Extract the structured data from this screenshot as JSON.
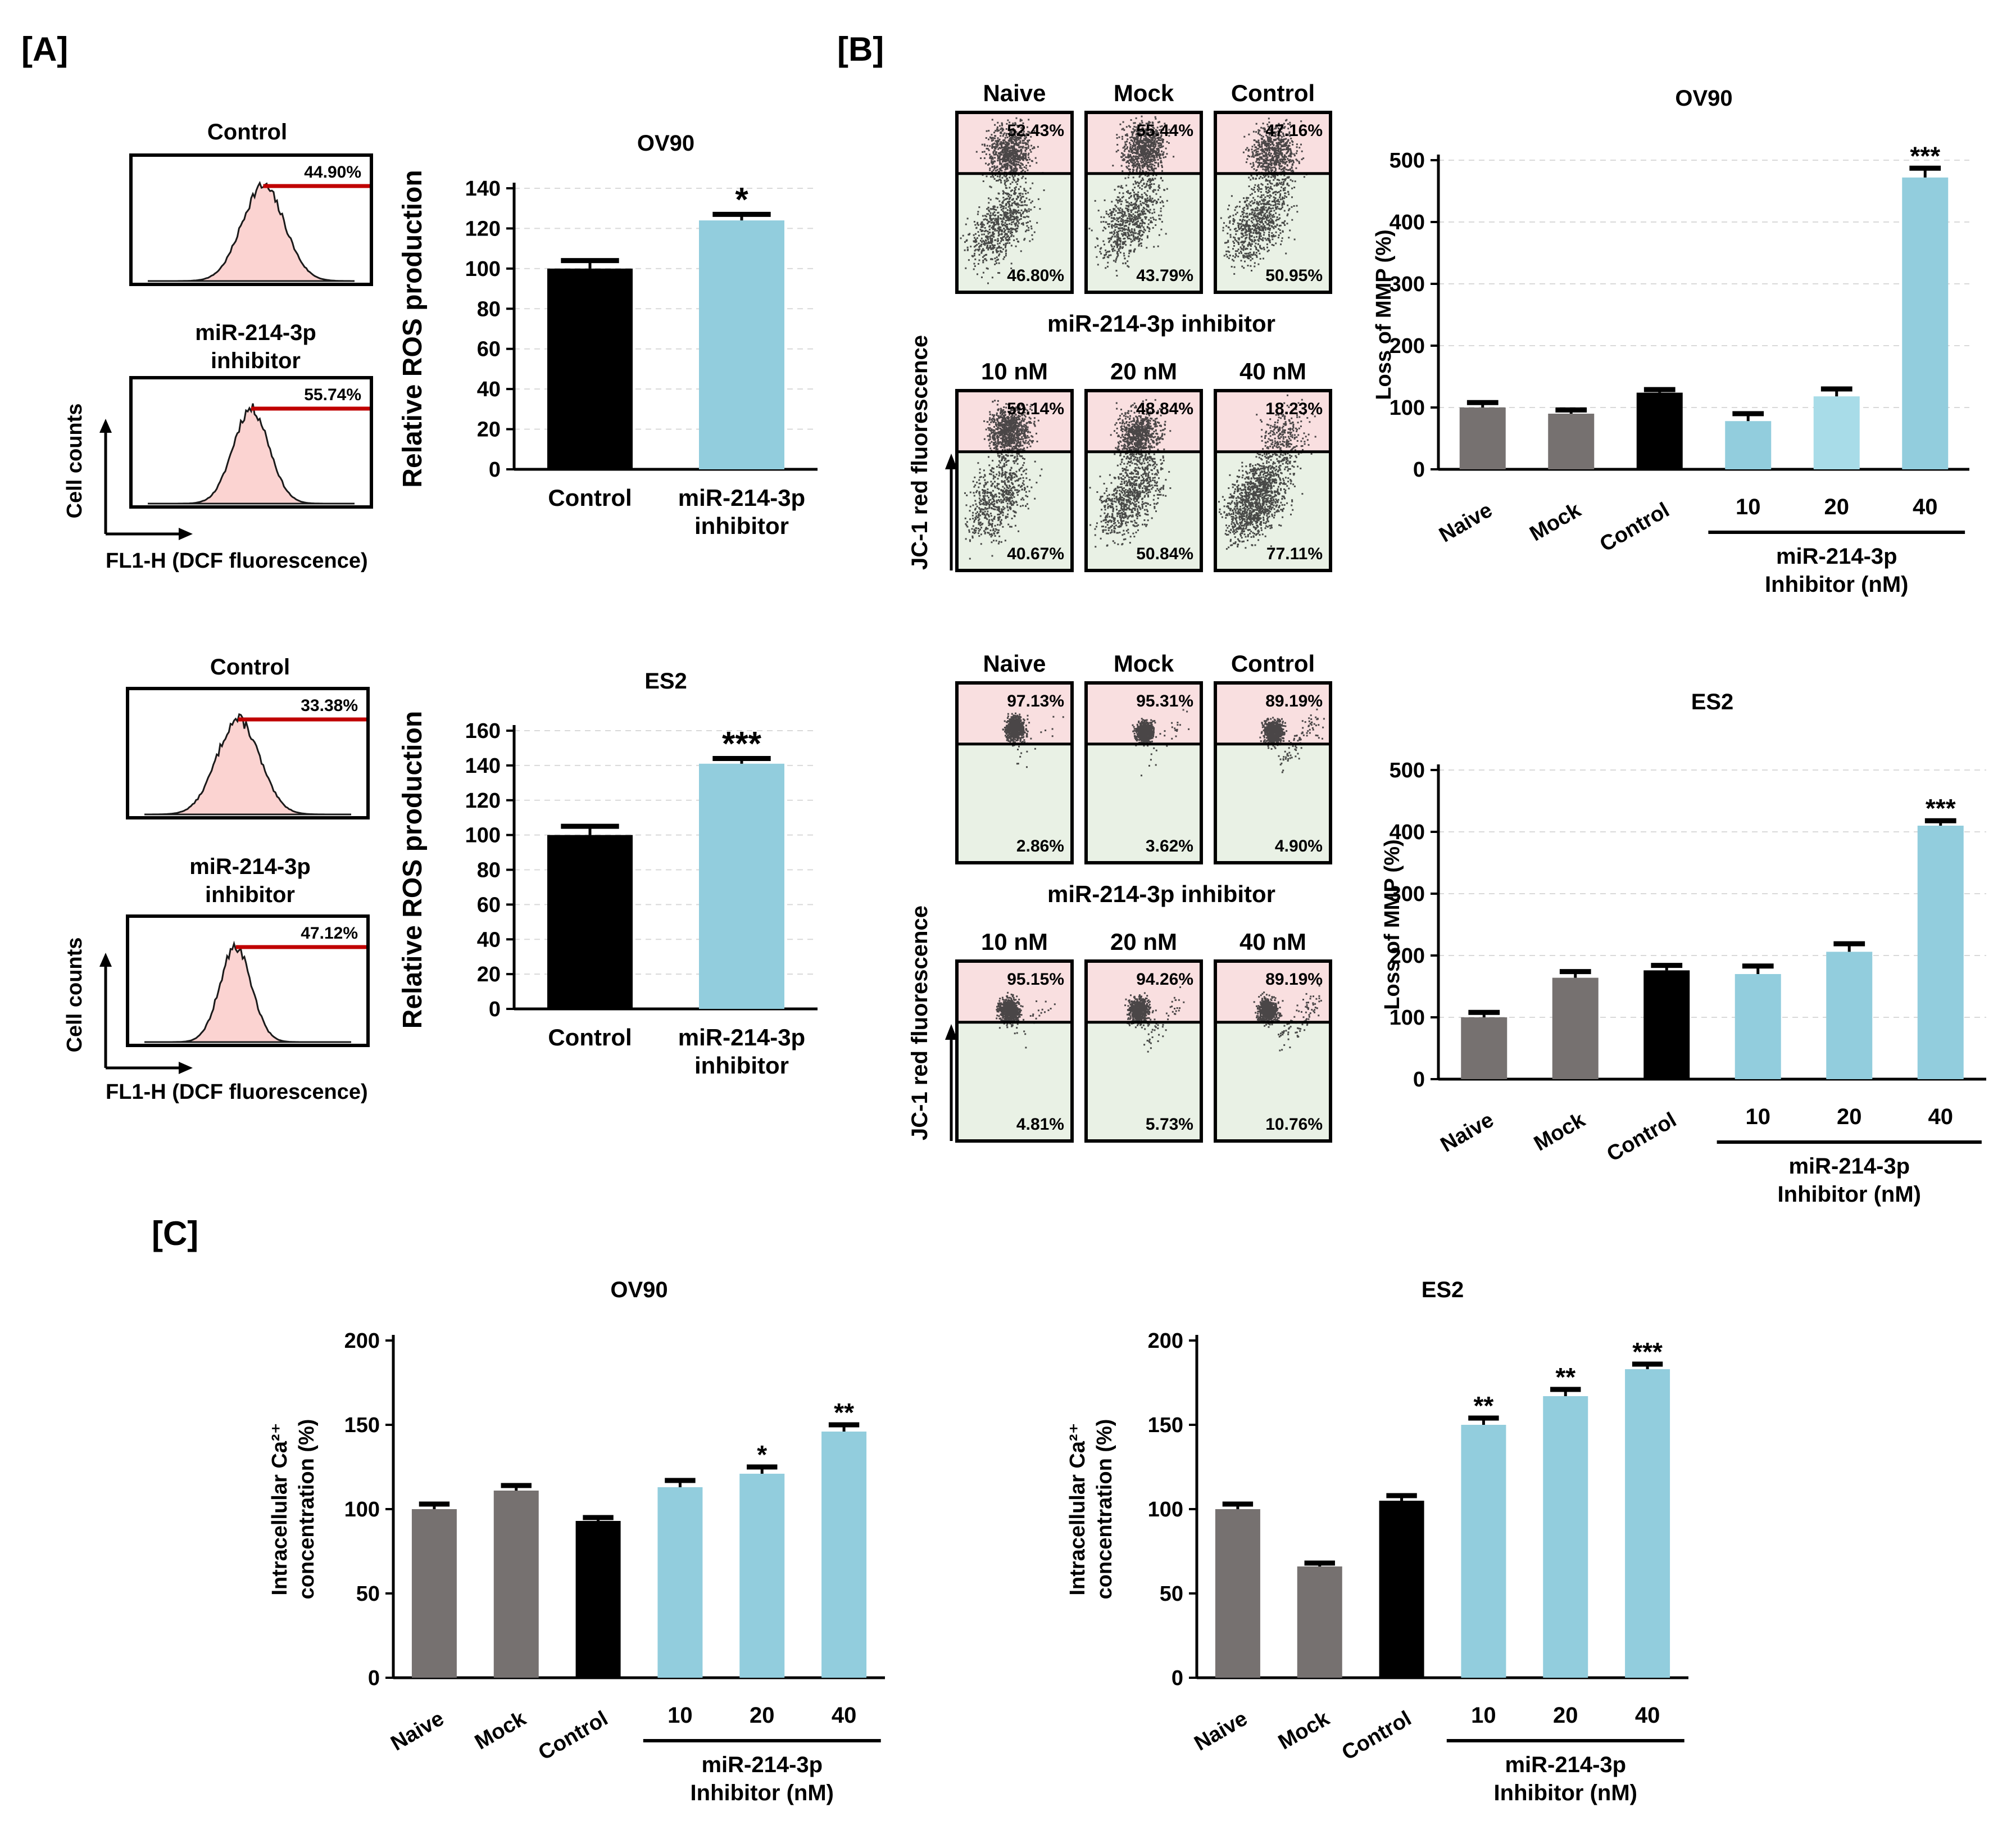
{
  "figure": {
    "panel_labels": [
      "[A]",
      "[B]",
      "[C]"
    ],
    "colors": {
      "black": "#000000",
      "grey": "#767170",
      "light_blue": "#a8dce8",
      "blue": "#92cddd",
      "hist_fill": "#fbd3d1",
      "hist_red_line": "#c00000",
      "dot_upper_bg": "#f9dfe0",
      "dot_lower_bg": "#e9f1e5",
      "gridline": "#d9d9d9"
    }
  },
  "panel_a": {
    "axis_y_label": "Cell counts",
    "axis_x_label": "FL1-H (DCF fluorescence)",
    "ov90_histograms": [
      {
        "title": "Control",
        "percent": "44.90%"
      },
      {
        "title_line1": "miR-214-3p",
        "title_line2": "inhibitor",
        "percent": "55.74%"
      }
    ],
    "es2_histograms": [
      {
        "title": "Control",
        "percent": "33.38%"
      },
      {
        "title_line1": "miR-214-3p",
        "title_line2": "inhibitor",
        "percent": "47.12%"
      }
    ]
  },
  "panel_b": {
    "y_axis_label": "JC-1 red fluorescence",
    "row_top_labels": [
      "Naive",
      "Mock",
      "Control"
    ],
    "inhibitor_title": "miR-214-3p inhibitor",
    "row_bottom_labels": [
      "10 nM",
      "20 nM",
      "40 nM"
    ],
    "ov90_dots": {
      "upper": [
        "52.43%",
        "55.44%",
        "47.16%",
        "59.14%",
        "48.84%",
        "18.23%"
      ],
      "lower": [
        "46.80%",
        "43.79%",
        "50.95%",
        "40.67%",
        "50.84%",
        "77.11%"
      ]
    },
    "es2_dots": {
      "upper": [
        "97.13%",
        "95.31%",
        "89.19%",
        "95.15%",
        "94.26%",
        "89.19%"
      ],
      "lower": [
        "2.86%",
        "3.62%",
        "4.90%",
        "4.81%",
        "5.73%",
        "10.76%"
      ]
    }
  },
  "chart_data": [
    {
      "id": "ros_ov90",
      "type": "bar",
      "title": "OV90",
      "categories": [
        "Control",
        "miR-214-3p inhibitor"
      ],
      "category_lines": [
        [
          "Control"
        ],
        [
          "miR-214-3p",
          "inhibitor"
        ]
      ],
      "values": [
        100,
        124
      ],
      "errors": [
        4,
        3
      ],
      "significance": [
        "",
        "*"
      ],
      "bar_colors": [
        "#000000",
        "#92cddd"
      ],
      "xlabel": "",
      "ylabel": "Relative ROS production",
      "ylim": [
        0,
        140
      ],
      "yticks": [
        0,
        20,
        40,
        60,
        80,
        100,
        120,
        140
      ],
      "grid": true
    },
    {
      "id": "ros_es2",
      "type": "bar",
      "title": "ES2",
      "categories": [
        "Control",
        "miR-214-3p inhibitor"
      ],
      "category_lines": [
        [
          "Control"
        ],
        [
          "miR-214-3p",
          "inhibitor"
        ]
      ],
      "values": [
        100,
        141
      ],
      "errors": [
        5,
        3
      ],
      "significance": [
        "",
        "***"
      ],
      "bar_colors": [
        "#000000",
        "#92cddd"
      ],
      "xlabel": "",
      "ylabel": "Relative ROS production",
      "ylim": [
        0,
        160
      ],
      "yticks": [
        0,
        20,
        40,
        60,
        80,
        100,
        120,
        140,
        160
      ],
      "grid": true
    },
    {
      "id": "mmp_ov90",
      "type": "bar",
      "title": "OV90",
      "categories": [
        "Naive",
        "Mock",
        "Control",
        "10",
        "20",
        "40"
      ],
      "values": [
        100,
        90,
        124,
        78,
        118,
        472
      ],
      "errors": [
        8,
        6,
        5,
        12,
        12,
        15
      ],
      "significance": [
        "",
        "",
        "",
        "",
        "",
        "***"
      ],
      "bar_colors": [
        "#767170",
        "#767170",
        "#000000",
        "#92cddd",
        "#a8dce8",
        "#92cddd"
      ],
      "group_label_lines": [
        "miR-214-3p",
        "Inhibitor (nM)"
      ],
      "xlabel": "",
      "ylabel": "Loss of MMP (%)",
      "ylim": [
        0,
        500
      ],
      "yticks": [
        0,
        100,
        200,
        300,
        400,
        500
      ],
      "grid": true
    },
    {
      "id": "mmp_es2",
      "type": "bar",
      "title": "ES2",
      "categories": [
        "Naive",
        "Mock",
        "Control",
        "10",
        "20",
        "40"
      ],
      "values": [
        100,
        164,
        176,
        170,
        206,
        410
      ],
      "errors": [
        8,
        10,
        8,
        13,
        13,
        8
      ],
      "significance": [
        "",
        "",
        "",
        "",
        "",
        "***"
      ],
      "bar_colors": [
        "#767170",
        "#767170",
        "#000000",
        "#92cddd",
        "#92cddd",
        "#92cddd"
      ],
      "group_label_lines": [
        "miR-214-3p",
        "Inhibitor (nM)"
      ],
      "xlabel": "",
      "ylabel": "Loss of MMP (%)",
      "ylim": [
        0,
        500
      ],
      "yticks": [
        0,
        100,
        200,
        300,
        400,
        500
      ],
      "grid": true
    },
    {
      "id": "ca_ov90",
      "type": "bar",
      "title": "OV90",
      "categories": [
        "Naive",
        "Mock",
        "Control",
        "10",
        "20",
        "40"
      ],
      "values": [
        100,
        111,
        93,
        113,
        121,
        146
      ],
      "errors": [
        3,
        3,
        2,
        4,
        4,
        4
      ],
      "significance": [
        "",
        "",
        "",
        "",
        "*",
        "**"
      ],
      "bar_colors": [
        "#767170",
        "#767170",
        "#000000",
        "#92cddd",
        "#92cddd",
        "#92cddd"
      ],
      "group_label_lines": [
        "miR-214-3p",
        "Inhibitor (nM)"
      ],
      "xlabel": "",
      "ylabel_lines": [
        "Intracellular Ca²⁺",
        "concentration (%)"
      ],
      "ylim": [
        0,
        200
      ],
      "yticks": [
        0,
        50,
        100,
        150,
        200
      ],
      "grid": false
    },
    {
      "id": "ca_es2",
      "type": "bar",
      "title": "ES2",
      "categories": [
        "Naive",
        "Mock",
        "Control",
        "10",
        "20",
        "40"
      ],
      "values": [
        100,
        66,
        105,
        150,
        167,
        183
      ],
      "errors": [
        3,
        2,
        3,
        4,
        4,
        3
      ],
      "significance": [
        "",
        "",
        "",
        "**",
        "**",
        "***"
      ],
      "bar_colors": [
        "#767170",
        "#767170",
        "#000000",
        "#92cddd",
        "#92cddd",
        "#92cddd"
      ],
      "group_label_lines": [
        "miR-214-3p",
        "Inhibitor (nM)"
      ],
      "xlabel": "",
      "ylabel_lines": [
        "Intracellular Ca²⁺",
        "concentration (%)"
      ],
      "ylim": [
        0,
        200
      ],
      "yticks": [
        0,
        50,
        100,
        150,
        200
      ],
      "grid": false
    }
  ]
}
